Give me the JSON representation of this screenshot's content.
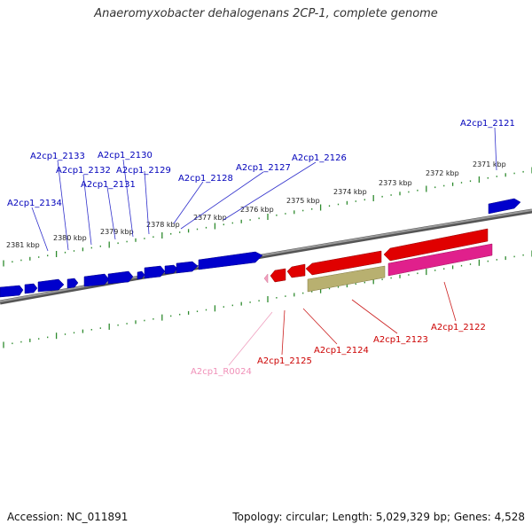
{
  "title": "Anaeromyxobacter dehalogenans 2CP-1, complete genome",
  "footer": {
    "accession": "Accession: NC_011891",
    "topology": "Topology: circular; Length: 5,029,329 bp; Genes: 4,528"
  },
  "kbp_labels": [
    "2371 kbp",
    "2372 kbp",
    "2373 kbp",
    "2374 kbp",
    "2375 kbp",
    "2376 kbp",
    "2377 kbp",
    "2378 kbp",
    "2379 kbp",
    "2380 kbp",
    "2381 kbp"
  ],
  "forward_genes": [
    "A2cp1_2121",
    "A2cp1_2126",
    "A2cp1_2127",
    "A2cp1_2128",
    "A2cp1_2129",
    "A2cp1_2130",
    "A2cp1_2131",
    "A2cp1_2132",
    "A2cp1_2133",
    "A2cp1_2134"
  ],
  "reverse_genes": [
    "A2cp1_2122",
    "A2cp1_2123",
    "A2cp1_2124",
    "A2cp1_2125",
    "A2cp1_R0024"
  ],
  "colors": {
    "forward": "#0000cc",
    "reverse": "#e00000",
    "rna": "#f2a0c0",
    "pseudo_magenta": "#e0208c",
    "olive": "#b8b070",
    "backbone": "#808080",
    "tick": "#2e8b2e"
  }
}
